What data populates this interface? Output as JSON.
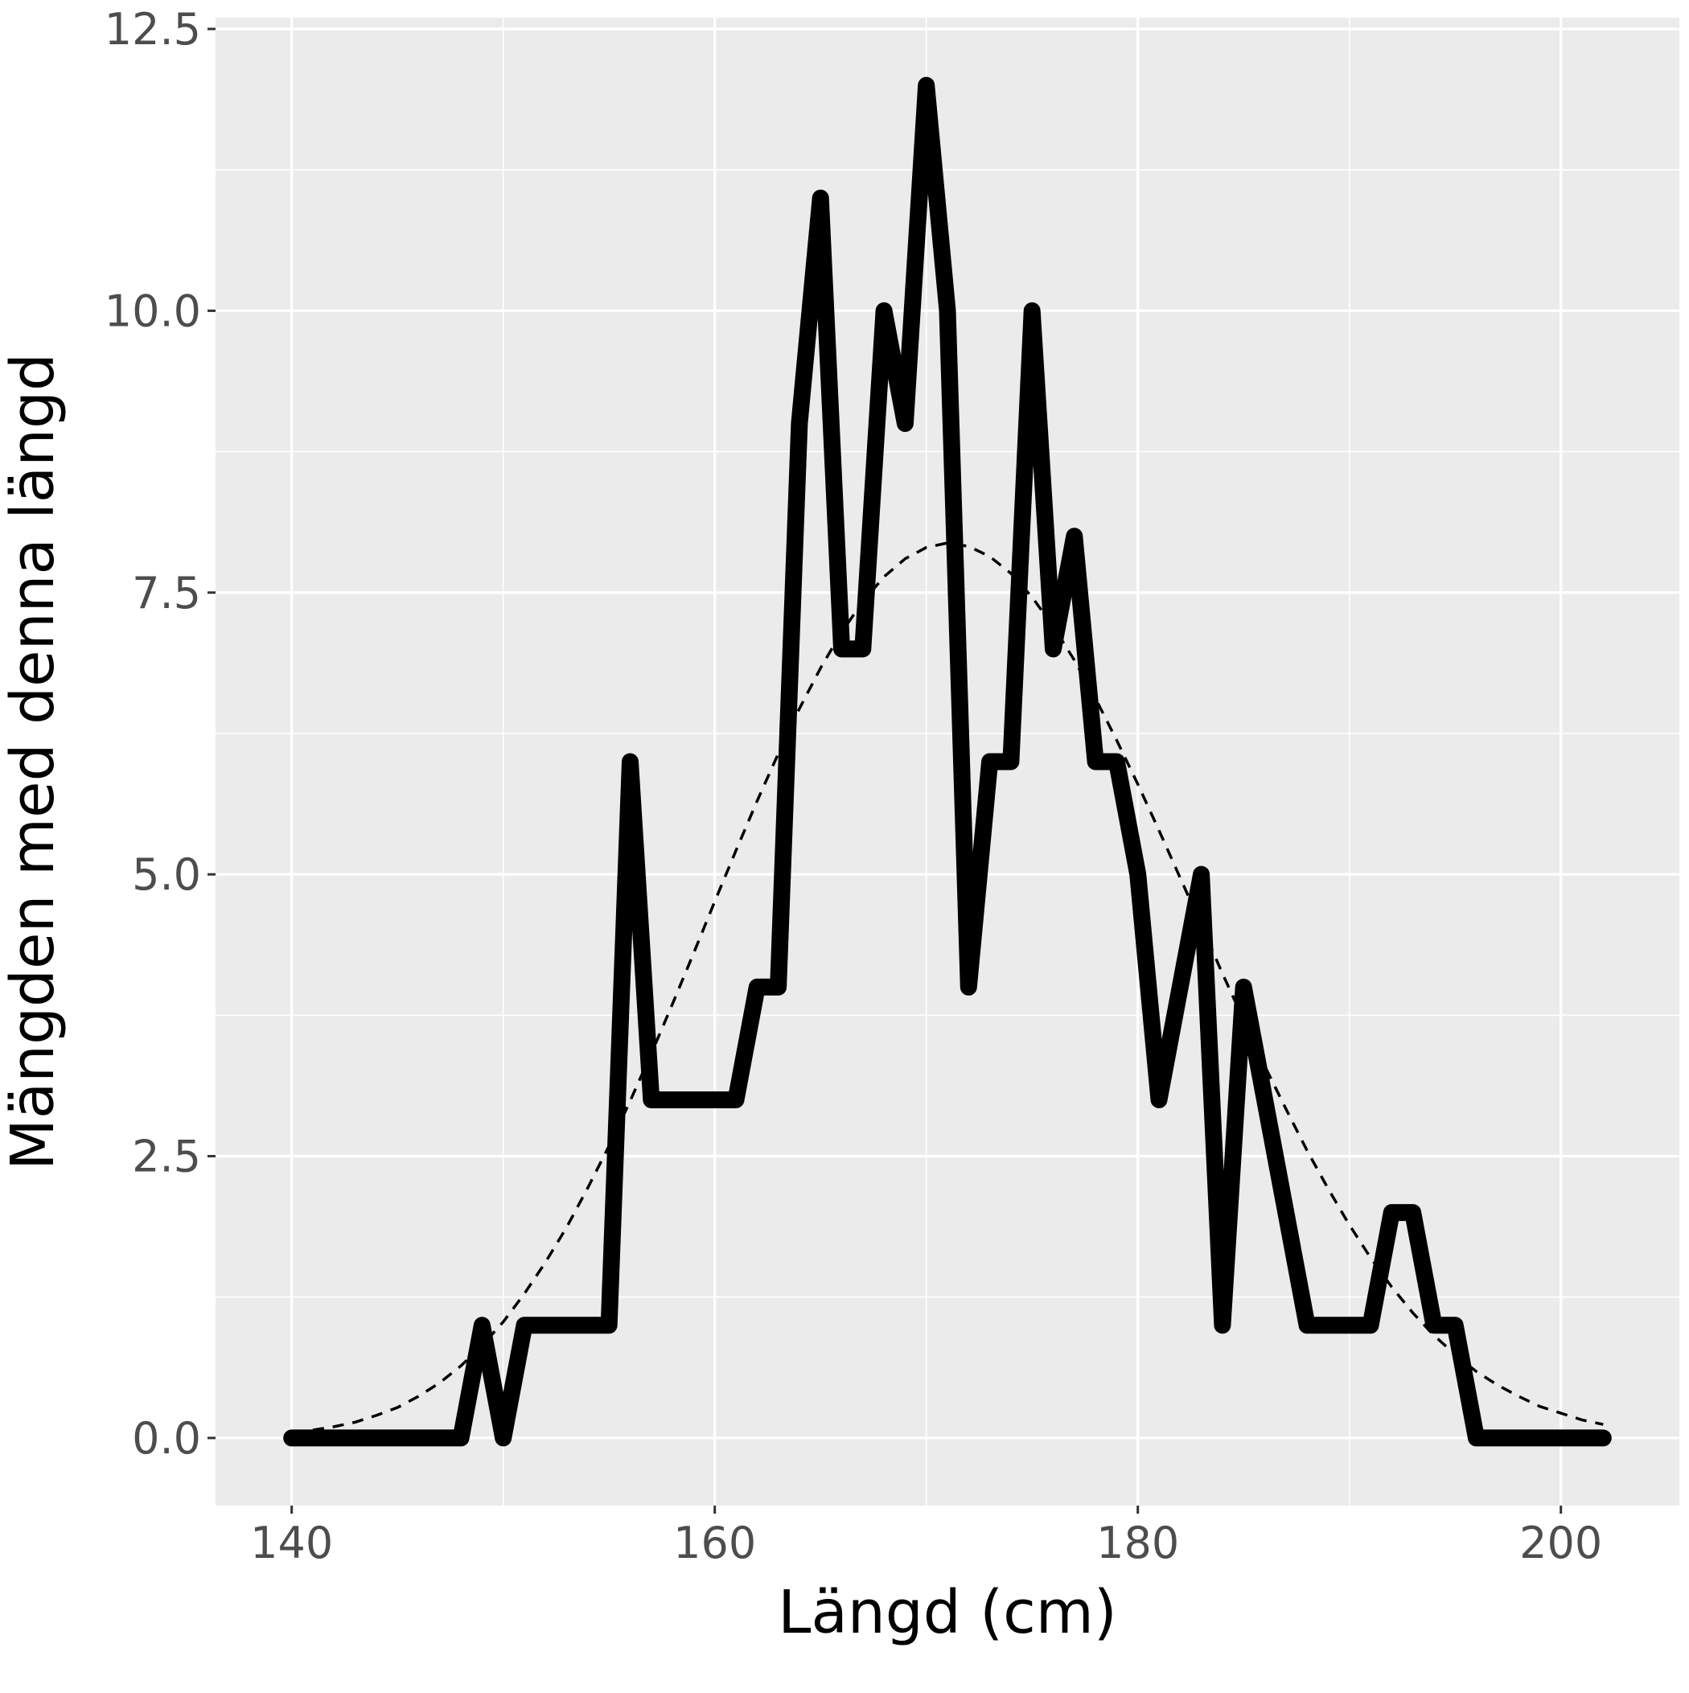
{
  "chart_data": {
    "type": "line",
    "title": "",
    "xlabel": "Längd (cm)",
    "ylabel": "Mängden med denna längd",
    "xlim": [
      136.4,
      205.6
    ],
    "ylim": [
      -0.6,
      12.6
    ],
    "x_ticks": [
      140,
      160,
      180,
      200
    ],
    "x_tick_labels": [
      "140",
      "160",
      "180",
      "200"
    ],
    "y_ticks": [
      0,
      2.5,
      5,
      7.5,
      10,
      12.5
    ],
    "y_tick_labels": [
      "0.0",
      "2.5",
      "5.0",
      "7.5",
      "10.0",
      "12.5"
    ],
    "grid": true,
    "panel_color": "#ebebeb",
    "grid_color": "#ffffff",
    "series": [
      {
        "style": "solid-thick",
        "color": "#000000",
        "x": [
          140,
          141,
          142,
          143,
          144,
          145,
          146,
          147,
          148,
          149,
          150,
          151,
          152,
          153,
          154,
          155,
          156,
          157,
          158,
          159,
          160,
          161,
          162,
          163,
          164,
          165,
          166,
          167,
          168,
          169,
          170,
          171,
          172,
          173,
          174,
          175,
          176,
          177,
          178,
          179,
          180,
          181,
          182,
          183,
          184,
          185,
          186,
          187,
          188,
          189,
          190,
          191,
          192,
          193,
          194,
          195,
          196,
          197,
          198,
          199,
          200,
          201,
          202
        ],
        "y": [
          0,
          0,
          0,
          0,
          0,
          0,
          0,
          0,
          0,
          1,
          0,
          1,
          1,
          1,
          1,
          1,
          6,
          3,
          3,
          3,
          3,
          3,
          4,
          4,
          9,
          11,
          7,
          7,
          10,
          9,
          12,
          10,
          4,
          6,
          6,
          10,
          7,
          8,
          6,
          6,
          5,
          3,
          4,
          5,
          1,
          4,
          3,
          2,
          1,
          1,
          1,
          1,
          2,
          2,
          1,
          1,
          0,
          0,
          0,
          0,
          0,
          0,
          0
        ]
      },
      {
        "style": "dashed-thin",
        "color": "#000000",
        "x": [
          141,
          142,
          143,
          144,
          145,
          146,
          147,
          148,
          149,
          150,
          151,
          152,
          153,
          154,
          155,
          156,
          157,
          158,
          159,
          160,
          161,
          162,
          163,
          164,
          165,
          166,
          167,
          168,
          169,
          170,
          171,
          172,
          173,
          174,
          175,
          176,
          177,
          178,
          179,
          180,
          181,
          182,
          183,
          184,
          185,
          186,
          187,
          188,
          189,
          190,
          191,
          192,
          193,
          194,
          195,
          196,
          197,
          198,
          199,
          200,
          201,
          202
        ],
        "y": [
          0.07,
          0.1,
          0.14,
          0.2,
          0.27,
          0.37,
          0.49,
          0.64,
          0.82,
          1.03,
          1.28,
          1.56,
          1.87,
          2.22,
          2.59,
          2.99,
          3.41,
          3.85,
          4.3,
          4.76,
          5.21,
          5.65,
          6.07,
          6.47,
          6.83,
          7.15,
          7.42,
          7.64,
          7.8,
          7.9,
          7.94,
          7.91,
          7.82,
          7.67,
          7.46,
          7.2,
          6.9,
          6.56,
          6.19,
          5.8,
          5.39,
          4.97,
          4.55,
          4.12,
          3.71,
          3.3,
          2.92,
          2.55,
          2.21,
          1.89,
          1.6,
          1.34,
          1.11,
          0.91,
          0.74,
          0.59,
          0.47,
          0.37,
          0.28,
          0.22,
          0.16,
          0.12
        ]
      }
    ]
  }
}
